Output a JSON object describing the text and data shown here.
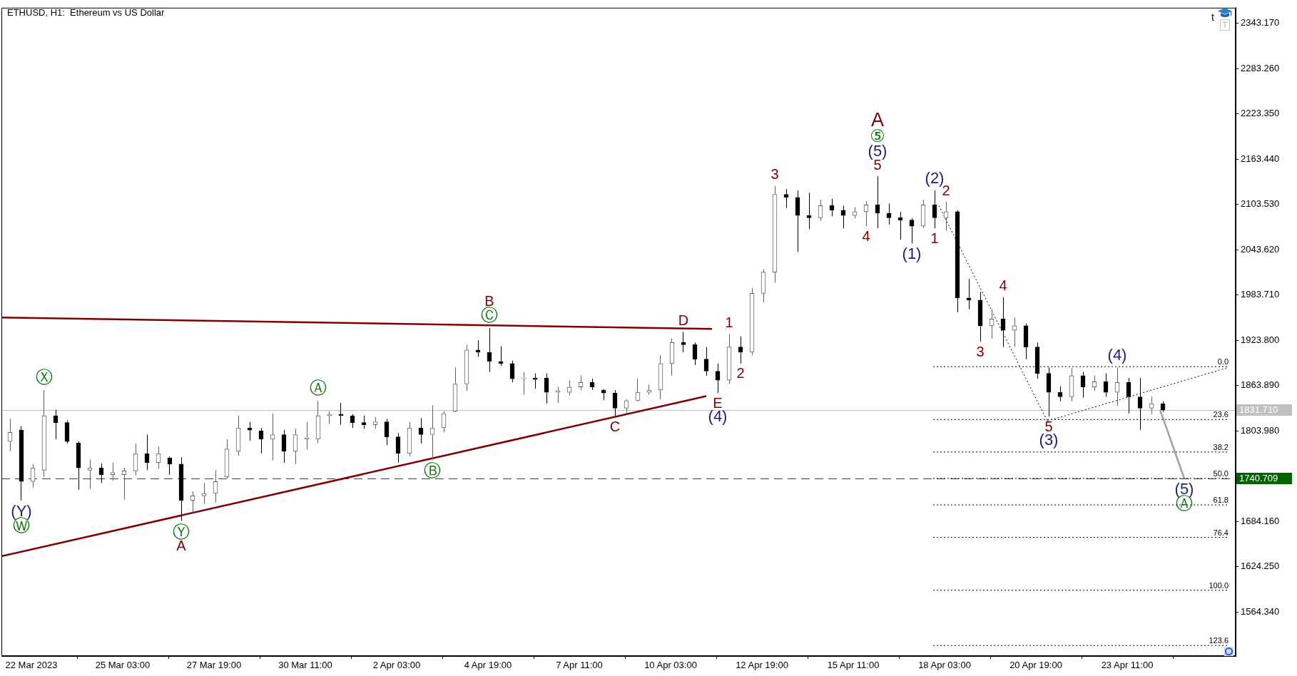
{
  "chart_data": {
    "type": "candlestick",
    "title": "ETHUSD, H1:  Ethereum vs US Dollar",
    "x": [
      "2023-03-21T20:00",
      "2023-03-22T04:00",
      "2023-03-22T12:00",
      "2023-03-22T20:00",
      "2023-03-23T04:00",
      "2023-03-23T12:00",
      "2023-03-23T20:00",
      "2023-03-24T04:00",
      "2023-03-24T12:00",
      "2023-03-24T20:00",
      "2023-03-25T04:00",
      "2023-03-25T12:00",
      "2023-03-25T20:00",
      "2023-03-26T04:00",
      "2023-03-26T12:00",
      "2023-03-26T20:00",
      "2023-03-27T04:00",
      "2023-03-27T12:00",
      "2023-03-27T20:00",
      "2023-03-28T04:00",
      "2023-03-28T12:00",
      "2023-03-28T20:00",
      "2023-03-29T04:00",
      "2023-03-29T12:00",
      "2023-03-29T20:00",
      "2023-03-30T04:00",
      "2023-03-30T12:00",
      "2023-03-30T20:00",
      "2023-03-31T04:00",
      "2023-03-31T12:00",
      "2023-03-31T20:00",
      "2023-04-01T04:00",
      "2023-04-01T12:00",
      "2023-04-01T20:00",
      "2023-04-02T04:00",
      "2023-04-02T12:00",
      "2023-04-02T20:00",
      "2023-04-03T04:00",
      "2023-04-03T12:00",
      "2023-04-03T20:00",
      "2023-04-04T04:00",
      "2023-04-04T12:00",
      "2023-04-04T20:00",
      "2023-04-05T04:00",
      "2023-04-05T12:00",
      "2023-04-05T20:00",
      "2023-04-06T04:00",
      "2023-04-06T12:00",
      "2023-04-06T20:00",
      "2023-04-07T04:00",
      "2023-04-07T12:00",
      "2023-04-07T20:00",
      "2023-04-08T04:00",
      "2023-04-08T12:00",
      "2023-04-08T20:00",
      "2023-04-09T04:00",
      "2023-04-09T12:00",
      "2023-04-09T20:00",
      "2023-04-10T04:00",
      "2023-04-10T12:00",
      "2023-04-10T20:00",
      "2023-04-11T04:00",
      "2023-04-11T12:00",
      "2023-04-11T20:00",
      "2023-04-12T04:00",
      "2023-04-12T12:00",
      "2023-04-12T20:00",
      "2023-04-13T04:00",
      "2023-04-13T12:00",
      "2023-04-13T20:00",
      "2023-04-14T04:00",
      "2023-04-14T12:00",
      "2023-04-14T20:00",
      "2023-04-15T04:00",
      "2023-04-15T12:00",
      "2023-04-15T20:00",
      "2023-04-16T04:00",
      "2023-04-16T12:00",
      "2023-04-16T20:00",
      "2023-04-17T04:00",
      "2023-04-17T12:00",
      "2023-04-17T20:00",
      "2023-04-18T04:00",
      "2023-04-18T12:00",
      "2023-04-18T20:00",
      "2023-04-19T04:00",
      "2023-04-19T12:00",
      "2023-04-19T20:00",
      "2023-04-20T04:00",
      "2023-04-20T12:00",
      "2023-04-20T20:00",
      "2023-04-21T04:00",
      "2023-04-21T12:00",
      "2023-04-21T20:00",
      "2023-04-22T04:00",
      "2023-04-22T12:00",
      "2023-04-22T20:00",
      "2023-04-23T04:00",
      "2023-04-23T12:00",
      "2023-04-23T20:00",
      "2023-04-24T04:00",
      "2023-04-24T12:00"
    ],
    "ohlc": [
      [
        1790,
        1820,
        1777,
        1802
      ],
      [
        1805,
        1810,
        1712,
        1737
      ],
      [
        1737,
        1760,
        1729,
        1755
      ],
      [
        1752,
        1858,
        1743,
        1824
      ],
      [
        1824,
        1832,
        1793,
        1815
      ],
      [
        1815,
        1818,
        1787,
        1790
      ],
      [
        1788,
        1790,
        1726,
        1755
      ],
      [
        1752,
        1766,
        1727,
        1755
      ],
      [
        1755,
        1761,
        1735,
        1746
      ],
      [
        1746,
        1762,
        1738,
        1749
      ],
      [
        1746,
        1755,
        1713,
        1751
      ],
      [
        1751,
        1787,
        1745,
        1774
      ],
      [
        1774,
        1799,
        1752,
        1762
      ],
      [
        1762,
        1783,
        1754,
        1774
      ],
      [
        1768,
        1770,
        1746,
        1760
      ],
      [
        1760,
        1769,
        1685,
        1712
      ],
      [
        1712,
        1724,
        1695,
        1718
      ],
      [
        1718,
        1735,
        1707,
        1721
      ],
      [
        1721,
        1752,
        1709,
        1737
      ],
      [
        1743,
        1793,
        1741,
        1780
      ],
      [
        1777,
        1824,
        1771,
        1808
      ],
      [
        1808,
        1816,
        1791,
        1805
      ],
      [
        1804,
        1808,
        1774,
        1793
      ],
      [
        1793,
        1827,
        1765,
        1799
      ],
      [
        1799,
        1805,
        1762,
        1777
      ],
      [
        1777,
        1807,
        1760,
        1799
      ],
      [
        1793,
        1816,
        1779,
        1795
      ],
      [
        1793,
        1844,
        1788,
        1824
      ],
      [
        1824,
        1830,
        1813,
        1826
      ],
      [
        1826,
        1841,
        1812,
        1824
      ],
      [
        1824,
        1826,
        1808,
        1815
      ],
      [
        1815,
        1824,
        1807,
        1812
      ],
      [
        1812,
        1822,
        1807,
        1816
      ],
      [
        1816,
        1820,
        1785,
        1796
      ],
      [
        1796,
        1801,
        1762,
        1774
      ],
      [
        1774,
        1816,
        1770,
        1808
      ],
      [
        1808,
        1821,
        1787,
        1799
      ],
      [
        1799,
        1838,
        1766,
        1808
      ],
      [
        1808,
        1830,
        1802,
        1827
      ],
      [
        1830,
        1888,
        1829,
        1866
      ],
      [
        1866,
        1918,
        1857,
        1911
      ],
      [
        1911,
        1924,
        1902,
        1908
      ],
      [
        1908,
        1940,
        1882,
        1896
      ],
      [
        1896,
        1916,
        1890,
        1893
      ],
      [
        1893,
        1897,
        1868,
        1873
      ],
      [
        1873,
        1882,
        1852,
        1874
      ],
      [
        1874,
        1880,
        1860,
        1872
      ],
      [
        1874,
        1880,
        1840,
        1855
      ],
      [
        1855,
        1862,
        1841,
        1857
      ],
      [
        1855,
        1871,
        1851,
        1862
      ],
      [
        1862,
        1877,
        1858,
        1868
      ],
      [
        1868,
        1873,
        1858,
        1862
      ],
      [
        1858,
        1859,
        1845,
        1854
      ],
      [
        1854,
        1858,
        1823,
        1834
      ],
      [
        1834,
        1846,
        1826,
        1844
      ],
      [
        1844,
        1873,
        1843,
        1855
      ],
      [
        1855,
        1865,
        1852,
        1858
      ],
      [
        1858,
        1904,
        1846,
        1893
      ],
      [
        1893,
        1926,
        1877,
        1921
      ],
      [
        1921,
        1935,
        1908,
        1918
      ],
      [
        1918,
        1921,
        1891,
        1899
      ],
      [
        1899,
        1915,
        1877,
        1883
      ],
      [
        1883,
        1893,
        1854,
        1871
      ],
      [
        1871,
        1932,
        1866,
        1915
      ],
      [
        1915,
        1929,
        1893,
        1908
      ],
      [
        1908,
        1993,
        1904,
        1986
      ],
      [
        1986,
        2018,
        1974,
        2014
      ],
      [
        2014,
        2128,
        2000,
        2117
      ],
      [
        2117,
        2124,
        2099,
        2113
      ],
      [
        2113,
        2122,
        2041,
        2089
      ],
      [
        2089,
        2119,
        2071,
        2086
      ],
      [
        2086,
        2110,
        2082,
        2102
      ],
      [
        2102,
        2111,
        2088,
        2096
      ],
      [
        2096,
        2102,
        2072,
        2089
      ],
      [
        2089,
        2100,
        2085,
        2094
      ],
      [
        2094,
        2108,
        2075,
        2103
      ],
      [
        2103,
        2141,
        2072,
        2092
      ],
      [
        2092,
        2105,
        2077,
        2086
      ],
      [
        2086,
        2094,
        2057,
        2083
      ],
      [
        2083,
        2085,
        2052,
        2075
      ],
      [
        2075,
        2110,
        2072,
        2103
      ],
      [
        2103,
        2122,
        2072,
        2086
      ],
      [
        2086,
        2107,
        2069,
        2094
      ],
      [
        2094,
        2096,
        1961,
        1980
      ],
      [
        1980,
        2005,
        1965,
        1977
      ],
      [
        1977,
        1988,
        1922,
        1943
      ],
      [
        1943,
        1965,
        1926,
        1952
      ],
      [
        1952,
        1981,
        1915,
        1937
      ],
      [
        1937,
        1954,
        1915,
        1943
      ],
      [
        1943,
        1946,
        1899,
        1915
      ],
      [
        1915,
        1921,
        1873,
        1880
      ],
      [
        1880,
        1888,
        1823,
        1855
      ],
      [
        1855,
        1863,
        1843,
        1849
      ],
      [
        1849,
        1887,
        1843,
        1877
      ],
      [
        1877,
        1882,
        1848,
        1862
      ],
      [
        1862,
        1877,
        1857,
        1869
      ],
      [
        1869,
        1880,
        1849,
        1855
      ],
      [
        1855,
        1888,
        1837,
        1868
      ],
      [
        1868,
        1874,
        1827,
        1849
      ],
      [
        1849,
        1874,
        1805,
        1834
      ],
      [
        1834,
        1849,
        1826,
        1840
      ],
      [
        1840,
        1843,
        1829,
        1831.7
      ]
    ],
    "colors": [
      "#606060",
      "#000000",
      "#606060",
      "#606060",
      "#000000",
      "#000000",
      "#000000",
      "#606060",
      "#000000",
      "#606060",
      "#606060",
      "#606060",
      "#000000",
      "#606060",
      "#000000",
      "#000000",
      "#606060",
      "#606060",
      "#606060",
      "#606060",
      "#606060",
      "#000000",
      "#000000",
      "#606060",
      "#000000",
      "#606060",
      "#606060",
      "#606060",
      "#606060",
      "#000000",
      "#000000",
      "#000000",
      "#606060",
      "#000000",
      "#000000",
      "#606060",
      "#000000",
      "#606060",
      "#606060",
      "#606060",
      "#606060",
      "#000000",
      "#000000",
      "#000000",
      "#000000",
      "#606060",
      "#000000",
      "#000000",
      "#606060",
      "#606060",
      "#606060",
      "#000000",
      "#000000",
      "#000000",
      "#606060",
      "#606060",
      "#606060",
      "#606060",
      "#606060",
      "#000000",
      "#000000",
      "#000000",
      "#000000",
      "#606060",
      "#000000",
      "#606060",
      "#606060",
      "#606060",
      "#000000",
      "#000000",
      "#000000",
      "#606060",
      "#000000",
      "#000000",
      "#606060",
      "#606060",
      "#000000",
      "#000000",
      "#000000",
      "#000000",
      "#606060",
      "#000000",
      "#606060",
      "#000000",
      "#000000",
      "#000000",
      "#606060",
      "#000000",
      "#606060",
      "#000000",
      "#000000",
      "#000000",
      "#000000",
      "#606060",
      "#000000",
      "#606060",
      "#000000",
      "#606060",
      "#000000",
      "#000000",
      "#606060",
      "#000000"
    ],
    "series": [
      {
        "type": "line",
        "x": [
          "2023-03-21T14:00",
          "2023-04-11T08:00"
        ],
        "values": [
          1954,
          1939
        ],
        "color": "#800000",
        "line_style": "solid"
      },
      {
        "type": "line",
        "x": [
          "2023-03-21T14:00",
          "2023-04-11T04:00"
        ],
        "values": [
          1638,
          1850
        ],
        "color": "#800000",
        "line_style": "solid"
      },
      {
        "type": "line",
        "x": [
          "2023-04-17T23:00",
          "2023-04-21T03:00"
        ],
        "values": [
          2102,
          1817
        ],
        "color": "#000000",
        "line_style": "dotted"
      },
      {
        "type": "line",
        "x": [
          "2023-04-21T03:00",
          "2023-04-26T10:00"
        ],
        "values": [
          1817,
          1888
        ],
        "color": "#000000",
        "line_style": "dotted"
      },
      {
        "type": "line",
        "x": [
          "2023-04-24T10:00",
          "2023-04-25T03:00"
        ],
        "values": [
          1832,
          1741
        ],
        "color": "#a0a0a0",
        "line_style": "solid"
      },
      {
        "type": "line",
        "x": [
          "2023-04-17T19:00",
          "2023-04-26T10:00"
        ],
        "values": [
          1889,
          1889
        ],
        "color": "#000000",
        "line_style": "dotted"
      },
      {
        "type": "line",
        "x": [
          "2023-04-17T19:00",
          "2023-04-26T10:00"
        ],
        "values": [
          1819,
          1819
        ],
        "color": "#000000",
        "line_style": "dotted"
      },
      {
        "type": "line",
        "x": [
          "2023-04-17T19:00",
          "2023-04-26T10:00"
        ],
        "values": [
          1776,
          1776
        ],
        "color": "#000000",
        "line_style": "dotted"
      },
      {
        "type": "line",
        "x": [
          "2023-04-17T19:00",
          "2023-04-26T10:00"
        ],
        "values": [
          1741,
          1741
        ],
        "color": "#000000",
        "line_style": "dotted"
      },
      {
        "type": "line",
        "x": [
          "2023-04-17T19:00",
          "2023-04-26T10:00"
        ],
        "values": [
          1706,
          1706
        ],
        "color": "#000000",
        "line_style": "dotted"
      },
      {
        "type": "line",
        "x": [
          "2023-04-17T19:00",
          "2023-04-26T10:00"
        ],
        "values": [
          1663,
          1663
        ],
        "color": "#000000",
        "line_style": "dotted"
      },
      {
        "type": "line",
        "x": [
          "2023-04-17T19:00",
          "2023-04-26T10:00"
        ],
        "values": [
          1593,
          1593
        ],
        "color": "#000000",
        "line_style": "dotted"
      },
      {
        "type": "line",
        "x": [
          "2023-04-17T19:00",
          "2023-04-26T10:00"
        ],
        "values": [
          1520,
          1520
        ],
        "color": "#000000",
        "line_style": "dotted"
      }
    ],
    "xlim": [
      "2023-03-21T14:00",
      "2023-04-26T15:00"
    ],
    "xticks": [
      {
        "value": "2023-03-22T11:00",
        "label": "22 Mar 2023"
      },
      {
        "value": "2023-03-25T03:00",
        "label": "25 Mar 03:00"
      },
      {
        "value": "2023-03-27T19:00",
        "label": "27 Mar 19:00"
      },
      {
        "value": "2023-03-30T11:00",
        "label": "30 Mar 11:00"
      },
      {
        "value": "2023-04-02T03:00",
        "label": "2 Apr 03:00"
      },
      {
        "value": "2023-04-04T19:00",
        "label": "4 Apr 19:00"
      },
      {
        "value": "2023-04-07T11:00",
        "label": "7 Apr 11:00"
      },
      {
        "value": "2023-04-10T03:00",
        "label": "10 Apr 03:00"
      },
      {
        "value": "2023-04-12T19:00",
        "label": "12 Apr 19:00"
      },
      {
        "value": "2023-04-15T11:00",
        "label": "15 Apr 11:00"
      },
      {
        "value": "2023-04-18T03:00",
        "label": "18 Apr 03:00"
      },
      {
        "value": "2023-04-20T19:00",
        "label": "20 Apr 19:00"
      },
      {
        "value": "2023-04-23T11:00",
        "label": "23 Apr 11:00"
      }
    ],
    "ylim": [
      1506,
      2364
    ],
    "yticks": [
      {
        "value": 1564.34,
        "label": "1564.340"
      },
      {
        "value": 1624.25,
        "label": "1624.250"
      },
      {
        "value": 1684.16,
        "label": "1684.160"
      },
      {
        "value": 1803.98,
        "label": "1803.980"
      },
      {
        "value": 1863.89,
        "label": "1863.890"
      },
      {
        "value": 1923.8,
        "label": "1923.800"
      },
      {
        "value": 1983.71,
        "label": "1983.710"
      },
      {
        "value": 2043.62,
        "label": "2043.620"
      },
      {
        "value": 2103.53,
        "label": "2103.530"
      },
      {
        "value": 2163.44,
        "label": "2163.440"
      },
      {
        "value": 2223.35,
        "label": "2223.350"
      },
      {
        "value": 2283.26,
        "label": "2283.260"
      },
      {
        "value": 2343.17,
        "label": "2343.170"
      }
    ],
    "ref_lines": [
      {
        "axis": "y",
        "value": 1831.71,
        "label": "1831.710",
        "color": "#c0c0c0",
        "line_style": "solid"
      },
      {
        "axis": "y",
        "value": 1740.709,
        "label": "1740.709",
        "color": "#006400",
        "line_style": "dashed"
      }
    ],
    "annotations": [
      {
        "text": "5",
        "x": "2023-04-16T04:00",
        "y": 2141
      },
      {
        "text": "(5)",
        "x": "2023-04-16T04:00",
        "y": 2141
      },
      {
        "text": "⑤",
        "x": "2023-04-16T04:00",
        "y": 2141
      },
      {
        "text": "A",
        "x": "2023-04-16T04:00",
        "y": 2141
      },
      {
        "text": "3",
        "x": "2023-04-13T04:00",
        "y": 2128
      },
      {
        "text": "4",
        "x": "2023-04-15T20:00",
        "y": 2075
      },
      {
        "text": "Ⓒ",
        "x": "2023-04-04T20:00",
        "y": 1940
      },
      {
        "text": "B",
        "x": "2023-04-04T20:00",
        "y": 1940
      },
      {
        "text": "D",
        "x": "2023-04-10T12:00",
        "y": 1935
      },
      {
        "text": "1",
        "x": "2023-04-11T20:00",
        "y": 1932
      },
      {
        "text": "2",
        "x": "2023-04-12T04:00",
        "y": 1893
      },
      {
        "text": "E",
        "x": "2023-04-11T12:00",
        "y": 1854
      },
      {
        "text": "(4)",
        "x": "2023-04-11T12:00",
        "y": 1854
      },
      {
        "text": "C",
        "x": "2023-04-08T12:00",
        "y": 1823
      },
      {
        "text": "Ⓨ",
        "x": "2023-03-26T20:00",
        "y": 1685
      },
      {
        "text": "A",
        "x": "2023-03-26T20:00",
        "y": 1685
      },
      {
        "text": "(Y)",
        "x": "2023-03-22T04:00",
        "y": 1712
      },
      {
        "text": "Ⓦ",
        "x": "2023-03-22T04:00",
        "y": 1712
      },
      {
        "text": "Ⓧ",
        "x": "2023-03-22T20:00",
        "y": 1858
      },
      {
        "text": "Ⓐ",
        "x": "2023-03-30T20:00",
        "y": 1844
      },
      {
        "text": "Ⓑ",
        "x": "2023-04-03T04:00",
        "y": 1766
      },
      {
        "text": "(1)",
        "x": "2023-04-17T04:00",
        "y": 2052
      },
      {
        "text": "(2)",
        "x": "2023-04-17T20:00",
        "y": 2122
      },
      {
        "text": "1",
        "x": "2023-04-17T20:00",
        "y": 2072
      },
      {
        "text": "2",
        "x": "2023-04-18T04:00",
        "y": 2107
      },
      {
        "text": "3",
        "x": "2023-04-19T04:00",
        "y": 1922
      },
      {
        "text": "4",
        "x": "2023-04-19T20:00",
        "y": 1981
      },
      {
        "text": "5",
        "x": "2023-04-21T04:00",
        "y": 1823
      },
      {
        "text": "(3)",
        "x": "2023-04-21T04:00",
        "y": 1823
      },
      {
        "text": "(4)",
        "x": "2023-04-23T04:00",
        "y": 1888
      },
      {
        "text": "(5)",
        "x": "2023-04-25T03:00",
        "y": 1741
      },
      {
        "text": "Ⓐ",
        "x": "2023-04-25T03:00",
        "y": 1741
      },
      {
        "text": "0.0",
        "x": "2023-04-26T10:00",
        "y": 1889
      },
      {
        "text": "23.6",
        "x": "2023-04-26T10:00",
        "y": 1819
      },
      {
        "text": "38.2",
        "x": "2023-04-26T10:00",
        "y": 1776
      },
      {
        "text": "50.0",
        "x": "2023-04-26T10:00",
        "y": 1741
      },
      {
        "text": "61.8",
        "x": "2023-04-26T10:00",
        "y": 1706
      },
      {
        "text": "76.4",
        "x": "2023-04-26T10:00",
        "y": 1663
      },
      {
        "text": "100.0",
        "x": "2023-04-26T10:00",
        "y": 1593
      },
      {
        "text": "123.6",
        "x": "2023-04-26T10:00",
        "y": 1520
      },
      "t"
    ]
  }
}
